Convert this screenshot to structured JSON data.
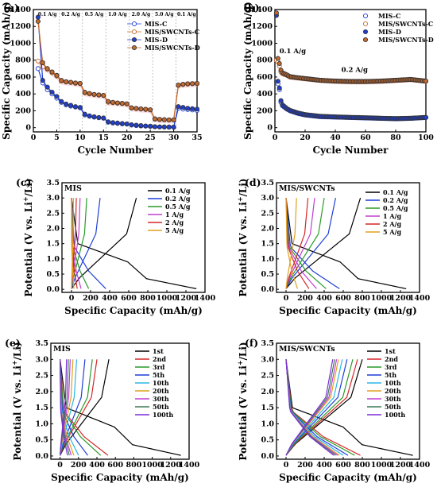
{
  "colors": {
    "black": "#000000",
    "red": "#d62728",
    "blue": "#1f3fd6",
    "green": "#2a9a2a",
    "magenta": "#c03fd0",
    "cyan": "#2bb6e8",
    "orange": "#e0a020",
    "olive": "#3b7a57",
    "purple": "#7f2fd6",
    "blue_marker": "#1f3fd6",
    "orange_marker": "#c76b2e",
    "band": "#f5c6cf"
  },
  "chart_data": [
    {
      "id": "a",
      "panel_label": "(a)",
      "type": "scatter",
      "xlabel": "Cycle Number",
      "ylabel": "Specific Capacity (mAh/g)",
      "xlim": [
        0,
        35
      ],
      "ylim": [
        -50,
        1400
      ],
      "xticks": [
        0,
        5,
        10,
        15,
        20,
        25,
        30,
        35
      ],
      "yticks": [
        0,
        200,
        400,
        600,
        800,
        1000,
        1200,
        1400
      ],
      "rate_notes": [
        "0.1 A/g",
        "0.2 A/g",
        "0.5 A/g",
        "1.0 A/g",
        "2.0 A/g",
        "5.0 A/g",
        "0.1 A/g"
      ],
      "rate_boundaries": [
        5,
        10,
        15,
        20,
        25,
        30
      ],
      "legend": [
        "MIS-C",
        "MIS/SWCNTs-C",
        "MIS-D",
        "MIS/SWCNTs-D"
      ],
      "x": [
        1,
        2,
        3,
        4,
        5,
        6,
        7,
        8,
        9,
        10,
        11,
        12,
        13,
        14,
        15,
        16,
        17,
        18,
        19,
        20,
        21,
        22,
        23,
        24,
        25,
        26,
        27,
        28,
        29,
        30,
        31,
        32,
        33,
        34,
        35
      ],
      "series": [
        {
          "name": "MIS-C",
          "marker": "open-circle",
          "color": "blue_marker",
          "values": [
            700,
            530,
            450,
            400,
            350,
            300,
            270,
            255,
            245,
            235,
            150,
            135,
            125,
            118,
            112,
            65,
            55,
            50,
            45,
            42,
            30,
            25,
            20,
            18,
            15,
            10,
            8,
            7,
            6,
            5,
            230,
            220,
            215,
            210,
            205
          ]
        },
        {
          "name": "MIS/SWCNTs-C",
          "marker": "open-circle",
          "color": "orange_marker",
          "values": [
            790,
            720,
            690,
            650,
            610,
            550,
            540,
            535,
            525,
            520,
            410,
            400,
            390,
            385,
            380,
            300,
            295,
            290,
            285,
            280,
            230,
            225,
            220,
            215,
            210,
            100,
            95,
            92,
            90,
            90,
            500,
            510,
            515,
            520,
            520
          ]
        },
        {
          "name": "MIS-D",
          "marker": "filled-circle",
          "color": "blue_marker",
          "values": [
            1310,
            560,
            480,
            420,
            370,
            310,
            280,
            265,
            250,
            240,
            160,
            140,
            130,
            120,
            115,
            70,
            60,
            55,
            50,
            45,
            35,
            30,
            25,
            20,
            18,
            12,
            10,
            9,
            8,
            7,
            250,
            240,
            230,
            225,
            220
          ]
        },
        {
          "name": "MIS/SWCNTs-D",
          "marker": "filled-circle",
          "color": "orange_marker",
          "values": [
            1260,
            770,
            700,
            660,
            620,
            560,
            545,
            538,
            530,
            525,
            420,
            405,
            395,
            388,
            383,
            310,
            300,
            293,
            288,
            283,
            235,
            228,
            222,
            218,
            212,
            105,
            98,
            95,
            92,
            92,
            505,
            515,
            520,
            522,
            525
          ]
        }
      ]
    },
    {
      "id": "b",
      "panel_label": "(b)",
      "type": "scatter",
      "xlabel": "Cycle Number",
      "ylabel": "Specific Capacity (mAh/g)",
      "xlim": [
        0,
        100
      ],
      "ylim": [
        -50,
        1400
      ],
      "xticks": [
        0,
        20,
        40,
        60,
        80,
        100
      ],
      "yticks": [
        0,
        200,
        400,
        600,
        800,
        1000,
        1200,
        1400
      ],
      "annotations": [
        "0.1 A/g",
        "0.2 A/g"
      ],
      "legend": [
        "MIS-C",
        "MIS/SWCNTs-C",
        "MIS-D",
        "MIS/SWCNTs-D"
      ],
      "series": [
        {
          "name": "MIS-C",
          "marker": "open-circle",
          "color": "blue_marker",
          "points": [
            [
              1,
              800
            ],
            [
              2,
              520
            ],
            [
              3,
              450
            ],
            [
              4,
              300
            ],
            [
              5,
              260
            ],
            [
              8,
              220
            ],
            [
              10,
              200
            ],
            [
              15,
              170
            ],
            [
              20,
              150
            ],
            [
              25,
              140
            ],
            [
              30,
              130
            ],
            [
              40,
              125
            ],
            [
              50,
              120
            ],
            [
              60,
              115
            ],
            [
              70,
              110
            ],
            [
              80,
              105
            ],
            [
              90,
              110
            ],
            [
              100,
              120
            ]
          ]
        },
        {
          "name": "MIS/SWCNTs-C",
          "marker": "open-circle",
          "color": "orange_marker",
          "points": [
            [
              1,
              800
            ],
            [
              2,
              780
            ],
            [
              3,
              730
            ],
            [
              4,
              660
            ],
            [
              5,
              640
            ],
            [
              8,
              620
            ],
            [
              10,
              600
            ],
            [
              15,
              590
            ],
            [
              20,
              580
            ],
            [
              30,
              560
            ],
            [
              40,
              550
            ],
            [
              50,
              545
            ],
            [
              60,
              545
            ],
            [
              70,
              550
            ],
            [
              80,
              560
            ],
            [
              90,
              570
            ],
            [
              100,
              550
            ]
          ]
        },
        {
          "name": "MIS-D",
          "marker": "filled-circle",
          "color": "blue_marker",
          "points": [
            [
              1,
              1330
            ],
            [
              2,
              550
            ],
            [
              3,
              470
            ],
            [
              4,
              320
            ],
            [
              5,
              270
            ],
            [
              8,
              225
            ],
            [
              10,
              205
            ],
            [
              15,
              175
            ],
            [
              20,
              155
            ],
            [
              25,
              145
            ],
            [
              30,
              135
            ],
            [
              40,
              128
            ],
            [
              50,
              122
            ],
            [
              60,
              118
            ],
            [
              70,
              112
            ],
            [
              80,
              108
            ],
            [
              90,
              112
            ],
            [
              100,
              122
            ]
          ]
        },
        {
          "name": "MIS/SWCNTs-D",
          "marker": "filled-circle",
          "color": "orange_marker",
          "points": [
            [
              1,
              1360
            ],
            [
              2,
              820
            ],
            [
              3,
              760
            ],
            [
              4,
              680
            ],
            [
              5,
              650
            ],
            [
              8,
              625
            ],
            [
              10,
              605
            ],
            [
              15,
              592
            ],
            [
              20,
              582
            ],
            [
              30,
              562
            ],
            [
              40,
              552
            ],
            [
              50,
              548
            ],
            [
              60,
              547
            ],
            [
              70,
              552
            ],
            [
              80,
              562
            ],
            [
              90,
              572
            ],
            [
              100,
              552
            ]
          ]
        }
      ]
    },
    {
      "id": "c",
      "panel_label": "(c)",
      "type": "line",
      "inner_label": "MIS",
      "xlabel": "Specific Capacity (mAh/g)",
      "ylabel": "Potential (V vs. Li+/Li)",
      "xlim": [
        -100,
        1400
      ],
      "ylim": [
        -0.1,
        3.5
      ],
      "xticks": [
        0,
        200,
        400,
        600,
        800,
        1000,
        1200,
        1400
      ],
      "yticks": [
        0,
        0.5,
        1.0,
        1.5,
        2.0,
        2.5,
        3.0,
        3.5
      ],
      "xtick_labels": [
        "0",
        "200",
        "400",
        "600",
        "800",
        "1000",
        "1200",
        "1400"
      ],
      "ytick_labels": [
        "0.0",
        "0.5",
        "1.0",
        "1.5",
        "2.0",
        "2.5",
        "3.0",
        "3.5"
      ],
      "legend": [
        "0.1 A/g",
        "0.2 A/g",
        "0.5 A/g",
        "1 A/g",
        "2 A/g",
        "5 A/g"
      ],
      "series": [
        {
          "name": "0.1 A/g",
          "color": "black",
          "discharge_cap": 1310,
          "charge_cap": 680
        },
        {
          "name": "0.2 A/g",
          "color": "blue",
          "discharge_cap": 360,
          "charge_cap": 300
        },
        {
          "name": "0.5 A/g",
          "color": "green",
          "discharge_cap": 180,
          "charge_cap": 160
        },
        {
          "name": "1 A/g",
          "color": "magenta",
          "discharge_cap": 100,
          "charge_cap": 90
        },
        {
          "name": "2 A/g",
          "color": "red",
          "discharge_cap": 60,
          "charge_cap": 50
        },
        {
          "name": "5 A/g",
          "color": "orange",
          "discharge_cap": 25,
          "charge_cap": 20
        }
      ]
    },
    {
      "id": "d",
      "panel_label": "(d)",
      "type": "line",
      "inner_label": "MIS/SWCNTs",
      "xlabel": "Specific Capacity (mAh/g)",
      "ylabel": "Potential (V vs. Li+/Li)",
      "xlim": [
        -100,
        1400
      ],
      "ylim": [
        -0.1,
        3.5
      ],
      "xticks": [
        0,
        200,
        400,
        600,
        800,
        1000,
        1200,
        1400
      ],
      "yticks": [
        0,
        0.5,
        1.0,
        1.5,
        2.0,
        2.5,
        3.0,
        3.5
      ],
      "xtick_labels": [
        "0",
        "200",
        "400",
        "600",
        "800",
        "1000",
        "1200",
        "1400"
      ],
      "ytick_labels": [
        "0.0",
        "0.5",
        "1.0",
        "1.5",
        "2.0",
        "2.5",
        "3.0",
        "3.5"
      ],
      "legend": [
        "0.1 A/g",
        "0.2 A/g",
        "0.5 A/g",
        "1 A/g",
        "2 A/g",
        "5 A/g"
      ],
      "series": [
        {
          "name": "0.1 A/g",
          "color": "black",
          "discharge_cap": 1260,
          "charge_cap": 780
        },
        {
          "name": "0.2 A/g",
          "color": "blue",
          "discharge_cap": 560,
          "charge_cap": 520
        },
        {
          "name": "0.5 A/g",
          "color": "green",
          "discharge_cap": 420,
          "charge_cap": 400
        },
        {
          "name": "1 A/g",
          "color": "magenta",
          "discharge_cap": 320,
          "charge_cap": 300
        },
        {
          "name": "2 A/g",
          "color": "red",
          "discharge_cap": 240,
          "charge_cap": 230
        },
        {
          "name": "5 A/g",
          "color": "orange",
          "discharge_cap": 120,
          "charge_cap": 110
        }
      ]
    },
    {
      "id": "e",
      "panel_label": "(e)",
      "type": "line",
      "inner_label": "MIS",
      "xlabel": "Specific Capacity (mAh/g)",
      "ylabel": "Potential (V vs. Li+/Li)",
      "xlim": [
        -100,
        1400
      ],
      "ylim": [
        -0.1,
        3.5
      ],
      "xticks": [
        0,
        200,
        400,
        600,
        800,
        1000,
        1200,
        1400
      ],
      "yticks": [
        0,
        0.5,
        1.0,
        1.5,
        2.0,
        2.5,
        3.0,
        3.5
      ],
      "xtick_labels": [
        "0",
        "200",
        "400",
        "600",
        "800",
        "1000",
        "1200",
        "1400"
      ],
      "ytick_labels": [
        "0.0",
        "0.5",
        "1.0",
        "1.5",
        "2.0",
        "2.5",
        "3.0",
        "3.5"
      ],
      "legend": [
        "1st",
        "2nd",
        "3rd",
        "5th",
        "10th",
        "20th",
        "30th",
        "50th",
        "100th"
      ],
      "series": [
        {
          "name": "1st",
          "color": "black",
          "discharge_cap": 1310,
          "charge_cap": 530
        },
        {
          "name": "2nd",
          "color": "red",
          "discharge_cap": 520,
          "charge_cap": 400
        },
        {
          "name": "3rd",
          "color": "green",
          "discharge_cap": 440,
          "charge_cap": 350
        },
        {
          "name": "5th",
          "color": "blue",
          "discharge_cap": 300,
          "charge_cap": 270
        },
        {
          "name": "10th",
          "color": "cyan",
          "discharge_cap": 200,
          "charge_cap": 180
        },
        {
          "name": "20th",
          "color": "orange",
          "discharge_cap": 150,
          "charge_cap": 140
        },
        {
          "name": "30th",
          "color": "magenta",
          "discharge_cap": 120,
          "charge_cap": 110
        },
        {
          "name": "50th",
          "color": "olive",
          "discharge_cap": 100,
          "charge_cap": 90
        },
        {
          "name": "100th",
          "color": "purple",
          "discharge_cap": 80,
          "charge_cap": 70
        }
      ]
    },
    {
      "id": "f",
      "panel_label": "(f)",
      "type": "line",
      "inner_label": "MIS/SWCNTs",
      "xlabel": "Specific Capacity (mAh/g)",
      "ylabel": "Potential (V vs. Li+/Li)",
      "xlim": [
        -100,
        1400
      ],
      "ylim": [
        -0.1,
        3.5
      ],
      "xticks": [
        0,
        200,
        400,
        600,
        800,
        1000,
        1200,
        1400
      ],
      "yticks": [
        0,
        0.5,
        1.0,
        1.5,
        2.0,
        2.5,
        3.0,
        3.5
      ],
      "xtick_labels": [
        "0",
        "200",
        "400",
        "600",
        "800",
        "1000",
        "1200",
        "1400"
      ],
      "ytick_labels": [
        "0.0",
        "0.5",
        "1.0",
        "1.5",
        "2.0",
        "2.5",
        "3.0",
        "3.5"
      ],
      "legend": [
        "1st",
        "2nd",
        "3rd",
        "5th",
        "10th",
        "20th",
        "30th",
        "50th",
        "100th"
      ],
      "series": [
        {
          "name": "1st",
          "color": "black",
          "discharge_cap": 1330,
          "charge_cap": 800
        },
        {
          "name": "2nd",
          "color": "red",
          "discharge_cap": 780,
          "charge_cap": 750
        },
        {
          "name": "3rd",
          "color": "green",
          "discharge_cap": 720,
          "charge_cap": 700
        },
        {
          "name": "5th",
          "color": "blue",
          "discharge_cap": 650,
          "charge_cap": 640
        },
        {
          "name": "10th",
          "color": "cyan",
          "discharge_cap": 600,
          "charge_cap": 590
        },
        {
          "name": "20th",
          "color": "orange",
          "discharge_cap": 560,
          "charge_cap": 550
        },
        {
          "name": "30th",
          "color": "magenta",
          "discharge_cap": 540,
          "charge_cap": 530
        },
        {
          "name": "50th",
          "color": "olive",
          "discharge_cap": 520,
          "charge_cap": 510
        },
        {
          "name": "100th",
          "color": "purple",
          "discharge_cap": 500,
          "charge_cap": 490
        }
      ]
    }
  ]
}
